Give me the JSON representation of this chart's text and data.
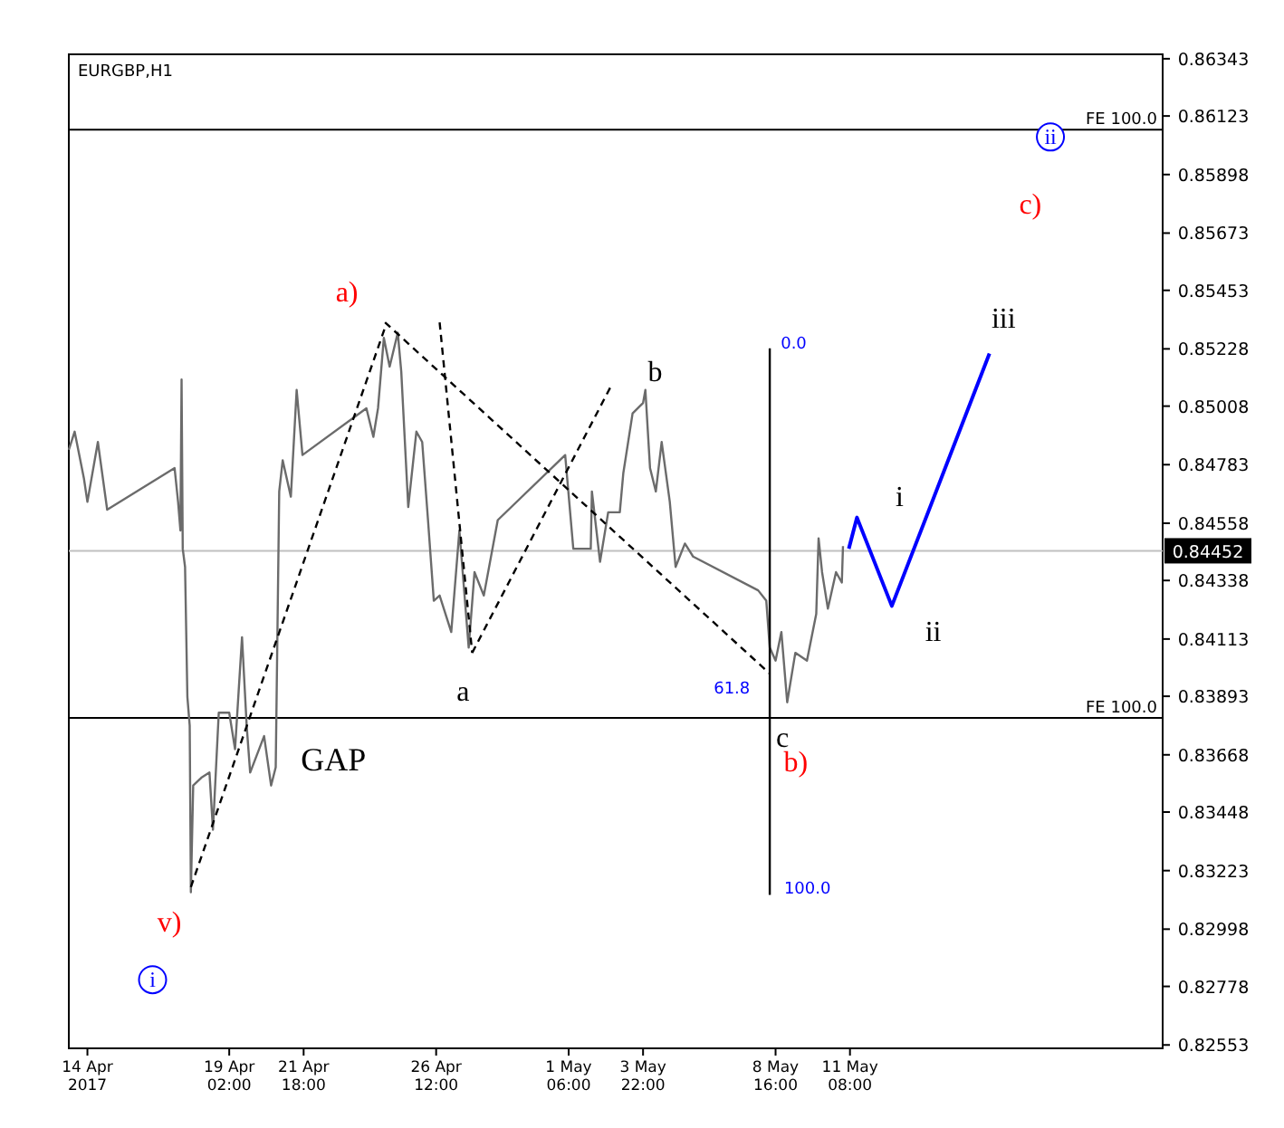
{
  "chart_data": {
    "type": "line",
    "title": "EURGBP,H1",
    "xlim": [
      "2017-04-13T08:00",
      "2017-05-22T13:00"
    ],
    "ylim": [
      0.8254,
      0.8636
    ],
    "xticks": [
      {
        "value": "2017-04-14",
        "label": "14 Apr 2017"
      },
      {
        "value": "2017-04-19T02:00",
        "label": "19 Apr 02:00"
      },
      {
        "value": "2017-04-21T18:00",
        "label": "21 Apr 18:00"
      },
      {
        "value": "2017-04-26T12:00",
        "label": "26 Apr 12:00"
      },
      {
        "value": "2017-05-01T06:00",
        "label": "1 May 06:00"
      },
      {
        "value": "2017-05-03T22:00",
        "label": "3 May 22:00"
      },
      {
        "value": "2017-05-08T16:00",
        "label": "8 May 16:00"
      },
      {
        "value": "2017-05-11T08:00",
        "label": "11 May 08:00"
      }
    ],
    "yticks": [
      0.86343,
      0.86123,
      0.85898,
      0.85673,
      0.85453,
      0.85228,
      0.85008,
      0.84783,
      0.84558,
      0.84338,
      0.84113,
      0.83893,
      0.83668,
      0.83448,
      0.83223,
      0.82998,
      0.82778,
      0.82553
    ],
    "grid": false,
    "series": [
      {
        "color": "#6b6b6b",
        "x": [
          "2017-04-13T08:00",
          "2017-04-13T13:00",
          "2017-04-13T21:00",
          "2017-04-14T00:00",
          "2017-04-14T09:00",
          "2017-04-14T17:00",
          "2017-04-17T03:00",
          "2017-04-17T06:00",
          "2017-04-17T08:00",
          "2017-04-17T09:00",
          "2017-04-17T10:00",
          "2017-04-17T12:00",
          "2017-04-17T14:00",
          "2017-04-17T16:00",
          "2017-04-17T17:00",
          "2017-04-17T19:00",
          "2017-04-18T02:00",
          "2017-04-18T09:00",
          "2017-04-18T12:00",
          "2017-04-18T17:00",
          "2017-04-19T02:00",
          "2017-04-19T07:00",
          "2017-04-19T13:00",
          "2017-04-19T17:00",
          "2017-04-19T20:00",
          "2017-04-20T08:00",
          "2017-04-20T14:00",
          "2017-04-20T18:00",
          "2017-04-20T21:00",
          "2017-04-21T00:00",
          "2017-04-21T07:00",
          "2017-04-21T12:00",
          "2017-04-21T17:00",
          "2017-04-24T00:00",
          "2017-04-24T06:00",
          "2017-04-24T10:00",
          "2017-04-24T15:00",
          "2017-04-24T20:00",
          "2017-04-25T03:00",
          "2017-04-25T06:00",
          "2017-04-25T12:00",
          "2017-04-25T19:00",
          "2017-04-26T00:00",
          "2017-04-26T05:00",
          "2017-04-26T10:00",
          "2017-04-26T15:00",
          "2017-04-27T01:00",
          "2017-04-27T08:00",
          "2017-04-27T16:00",
          "2017-04-27T21:00",
          "2017-04-28T05:00",
          "2017-04-28T17:00",
          "2017-05-01T03:00",
          "2017-05-01T10:00",
          "2017-05-02T01:00",
          "2017-05-02T02:00",
          "2017-05-02T09:00",
          "2017-05-02T16:00",
          "2017-05-03T02:00",
          "2017-05-03T05:00",
          "2017-05-03T13:00",
          "2017-05-03T22:00",
          "2017-05-04T00:00",
          "2017-05-04T04:00",
          "2017-05-04T09:00",
          "2017-05-04T14:00",
          "2017-05-04T21:00",
          "2017-05-05T02:00",
          "2017-05-05T10:00",
          "2017-05-05T17:00",
          "2017-05-08T01:00",
          "2017-05-08T08:00",
          "2017-05-08T11:00",
          "2017-05-08T16:00",
          "2017-05-08T21:00",
          "2017-05-09T02:00",
          "2017-05-09T09:00",
          "2017-05-09T19:00",
          "2017-05-10T03:00",
          "2017-05-10T05:00",
          "2017-05-10T08:00",
          "2017-05-10T13:00",
          "2017-05-10T20:00",
          "2017-05-11T01:00",
          "2017-05-11T02:00"
        ],
        "values": [
          0.8484,
          0.8491,
          0.8473,
          0.8464,
          0.8487,
          0.8461,
          0.8477,
          0.8464,
          0.8453,
          0.8511,
          0.8446,
          0.8439,
          0.8389,
          0.8378,
          0.8314,
          0.8355,
          0.8358,
          0.836,
          0.8338,
          0.8383,
          0.8383,
          0.8369,
          0.8412,
          0.8378,
          0.836,
          0.8374,
          0.8355,
          0.8362,
          0.8468,
          0.848,
          0.8466,
          0.8507,
          0.8482,
          0.85,
          0.8489,
          0.85,
          0.8527,
          0.8516,
          0.8529,
          0.8514,
          0.8462,
          0.8491,
          0.8487,
          0.8457,
          0.8426,
          0.8428,
          0.8414,
          0.8453,
          0.8408,
          0.8437,
          0.8428,
          0.8457,
          0.8482,
          0.8446,
          0.8446,
          0.8468,
          0.8441,
          0.846,
          0.846,
          0.8475,
          0.8498,
          0.8502,
          0.8507,
          0.8477,
          0.8468,
          0.8487,
          0.8464,
          0.8439,
          0.8448,
          0.8443,
          0.843,
          0.8426,
          0.8408,
          0.8403,
          0.8414,
          0.8387,
          0.8406,
          0.8403,
          0.8421,
          0.845,
          0.8437,
          0.8423,
          0.8437,
          0.8433,
          0.8447
        ]
      },
      {
        "color": "#0000ff",
        "x": [
          "2017-05-11T07:00",
          "2017-05-11T14:00",
          "2017-05-12T20:00",
          "2017-05-16T08:00"
        ],
        "values": [
          0.8446,
          0.8458,
          0.8424,
          0.8521
        ]
      },
      {
        "color": "#000000",
        "line_style": "dashed",
        "x": [
          "2017-04-17T17:00",
          "2017-04-24T16:00"
        ],
        "values": [
          0.8316,
          0.8531
        ]
      },
      {
        "color": "#000000",
        "line_style": "dashed",
        "x": [
          "2017-04-24T16:00",
          "2017-05-08T11:00"
        ],
        "values": [
          0.8533,
          0.8398
        ]
      },
      {
        "color": "#000000",
        "line_style": "dashed",
        "x": [
          "2017-04-26T15:00",
          "2017-04-27T19:00"
        ],
        "values": [
          0.8533,
          0.8406
        ]
      },
      {
        "color": "#000000",
        "line_style": "dashed",
        "x": [
          "2017-04-27T19:00",
          "2017-05-02T19:00"
        ],
        "values": [
          0.8406,
          0.8509
        ]
      },
      {
        "color": "#000000",
        "x": [
          "2017-05-08T11:00",
          "2017-05-08T11:00"
        ],
        "values": [
          0.8523,
          0.8313
        ]
      }
    ],
    "ref_lines": [
      {
        "axis": "y",
        "value": 0.8607,
        "label": "FE 100.0",
        "color": "#000000"
      },
      {
        "axis": "y",
        "value": 0.8381,
        "label": "FE 100.0",
        "color": "#000000"
      },
      {
        "axis": "y",
        "value": 0.84452,
        "label": "0.84452",
        "color": "#c0c0c0"
      }
    ],
    "annotations": [
      "a)",
      "b",
      {
        "text": "a",
        "x": "2017-04-27T19:00",
        "y": 0.8406
      },
      "c",
      "b)",
      "v)",
      "i",
      "ii",
      "c)",
      "i",
      "ii",
      "iii",
      "GAP",
      "0.0",
      "61.8",
      "100.0"
    ]
  }
}
